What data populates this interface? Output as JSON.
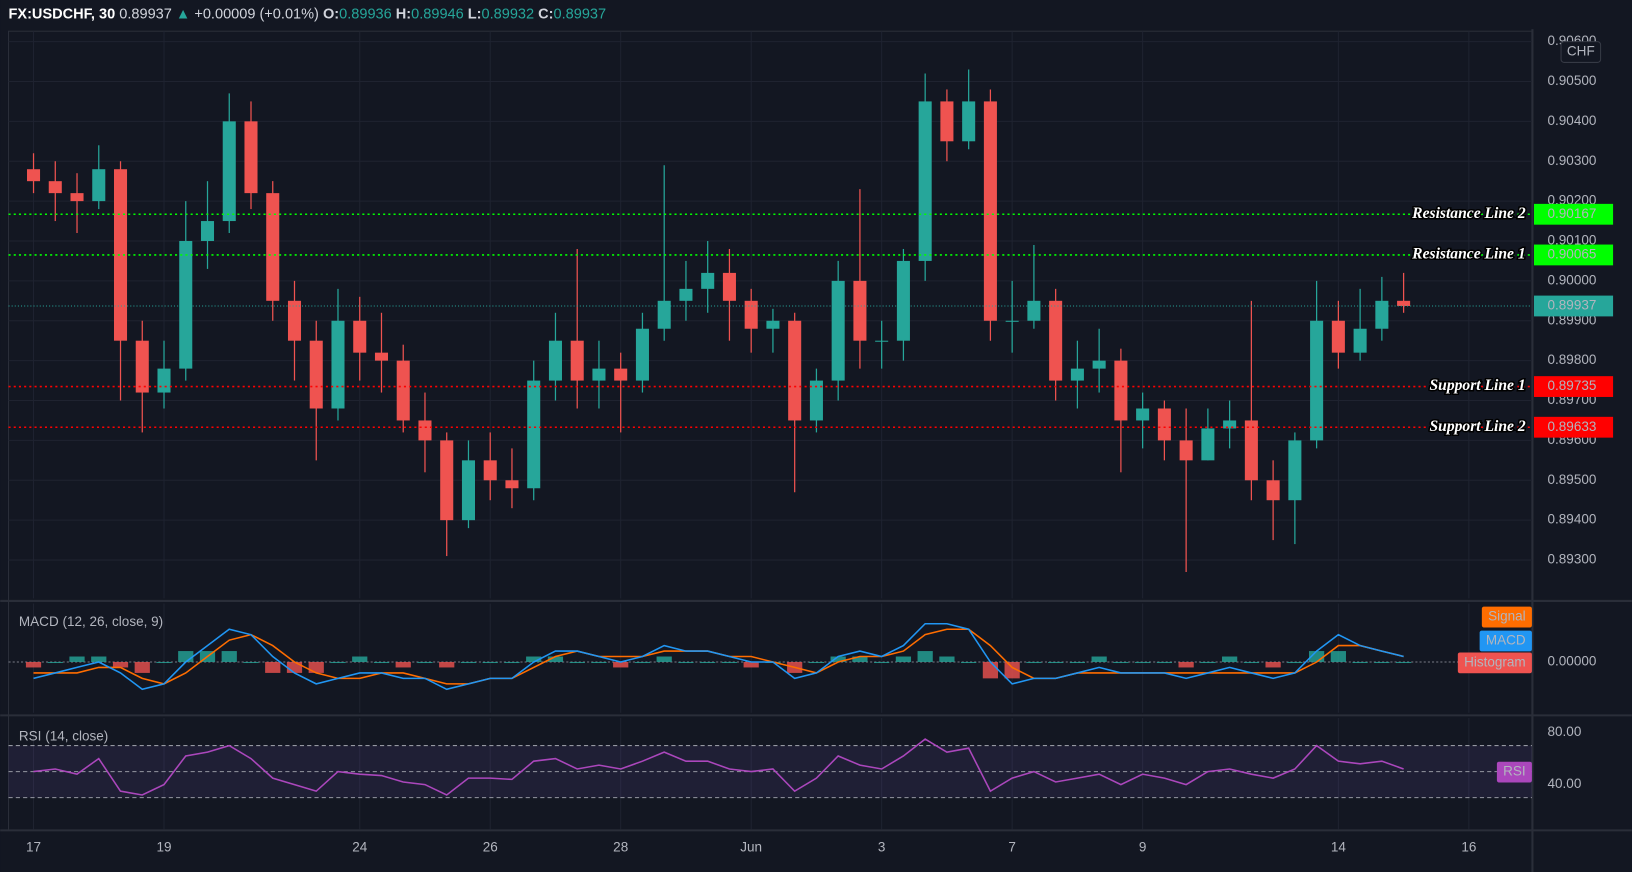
{
  "chart_data": [
    {
      "type": "candlestick",
      "title": "FX:USDCHF, 30",
      "last_price": 0.89937,
      "change": "+0.00009 (+0.01%)",
      "ohlc_legend": [
        {
          "label": "O:",
          "value": 0.89936
        },
        {
          "label": "H:",
          "value": 0.89946
        },
        {
          "label": "L:",
          "value": 0.89932
        },
        {
          "label": "C:",
          "value": 0.89937
        }
      ],
      "currency": "CHF",
      "up_color": "#26a69a",
      "down_color": "#ef5350",
      "last_color": "#26a69a",
      "xlim": [
        -1.15,
        68.9
      ],
      "xticks": [
        {
          "value": 0,
          "label": "17"
        },
        {
          "value": 6,
          "label": "19"
        },
        {
          "value": 15,
          "label": "24"
        },
        {
          "value": 21,
          "label": "26"
        },
        {
          "value": 27,
          "label": "28"
        },
        {
          "value": 33,
          "label": "Jun"
        },
        {
          "value": 39,
          "label": "3"
        },
        {
          "value": 45,
          "label": "7"
        },
        {
          "value": 51,
          "label": "9"
        },
        {
          "value": 60,
          "label": "14"
        },
        {
          "value": 66,
          "label": "16"
        }
      ],
      "ylim": [
        0.89204,
        0.90626
      ],
      "yticks": [
        {
          "value": 0.893,
          "label": "0.89300"
        },
        {
          "value": 0.894,
          "label": "0.89400"
        },
        {
          "value": 0.895,
          "label": "0.89500"
        },
        {
          "value": 0.896,
          "label": "0.89600"
        },
        {
          "value": 0.897,
          "label": "0.89700"
        },
        {
          "value": 0.898,
          "label": "0.89800"
        },
        {
          "value": 0.899,
          "label": "0.89900"
        },
        {
          "value": 0.9,
          "label": "0.90000"
        },
        {
          "value": 0.901,
          "label": "0.90100"
        },
        {
          "value": 0.902,
          "label": "0.90200"
        },
        {
          "value": 0.903,
          "label": "0.90300"
        },
        {
          "value": 0.904,
          "label": "0.90400"
        },
        {
          "value": 0.905,
          "label": "0.90500"
        },
        {
          "value": 0.906,
          "label": "0.90600"
        }
      ],
      "grid": true,
      "levels": [
        {
          "name": "Resistance Line 2",
          "value": 0.90167,
          "color": "#00ff00",
          "text_color": "#000000"
        },
        {
          "name": "Resistance Line 1",
          "value": 0.90065,
          "color": "#00ff00",
          "text_color": "#000000"
        },
        {
          "name": "Support Line 1",
          "value": 0.89735,
          "color": "#ff0000",
          "text_color": "#ffffff"
        },
        {
          "name": "Support Line 2",
          "value": 0.89633,
          "color": "#ff0000",
          "text_color": "#ffffff"
        }
      ],
      "open": [
        0.9028,
        0.9025,
        0.9022,
        0.902,
        0.9028,
        0.8985,
        0.8972,
        0.8978,
        0.901,
        0.9015,
        0.904,
        0.9022,
        0.8995,
        0.8985,
        0.8968,
        0.899,
        0.8982,
        0.898,
        0.8965,
        0.896,
        0.894,
        0.8955,
        0.895,
        0.8948,
        0.8975,
        0.8985,
        0.8975,
        0.8978,
        0.8975,
        0.8988,
        0.8995,
        0.8998,
        0.9002,
        0.8995,
        0.8988,
        0.899,
        0.8965,
        0.8975,
        0.9,
        0.8985,
        0.8985,
        0.9005,
        0.9045,
        0.9035,
        0.9045,
        0.899,
        0.899,
        0.8995,
        0.8975,
        0.8978,
        0.898,
        0.8965,
        0.8968,
        0.896,
        0.8955,
        0.8963,
        0.8965,
        0.895,
        0.8945,
        0.896,
        0.899,
        0.8982,
        0.8988,
        0.8995
      ],
      "high": [
        0.9032,
        0.903,
        0.9027,
        0.9034,
        0.903,
        0.899,
        0.8985,
        0.902,
        0.9025,
        0.9047,
        0.9045,
        0.9025,
        0.9,
        0.899,
        0.8998,
        0.8996,
        0.8992,
        0.8984,
        0.8972,
        0.8962,
        0.896,
        0.8962,
        0.8958,
        0.898,
        0.8992,
        0.9008,
        0.8985,
        0.8982,
        0.8992,
        0.9029,
        0.9005,
        0.901,
        0.9008,
        0.8998,
        0.8993,
        0.8992,
        0.8978,
        0.9005,
        0.9023,
        0.899,
        0.9008,
        0.9052,
        0.9048,
        0.9053,
        0.9048,
        0.9,
        0.9009,
        0.8998,
        0.8985,
        0.8988,
        0.8983,
        0.8972,
        0.897,
        0.8968,
        0.8968,
        0.897,
        0.8995,
        0.8955,
        0.8962,
        0.9,
        0.8995,
        0.8998,
        0.9001,
        0.9002
      ],
      "low": [
        0.9022,
        0.9015,
        0.9012,
        0.9018,
        0.897,
        0.8962,
        0.8968,
        0.8975,
        0.9003,
        0.9012,
        0.9018,
        0.899,
        0.8975,
        0.8955,
        0.8965,
        0.8975,
        0.8972,
        0.8962,
        0.8952,
        0.8931,
        0.8938,
        0.8945,
        0.8943,
        0.8945,
        0.897,
        0.8968,
        0.8968,
        0.8962,
        0.8972,
        0.8985,
        0.899,
        0.8992,
        0.8985,
        0.8982,
        0.8982,
        0.8947,
        0.8962,
        0.897,
        0.8978,
        0.8978,
        0.898,
        0.9,
        0.903,
        0.9033,
        0.8985,
        0.8982,
        0.8988,
        0.897,
        0.8968,
        0.8972,
        0.8952,
        0.8958,
        0.8955,
        0.8927,
        0.8955,
        0.8958,
        0.8945,
        0.8935,
        0.8934,
        0.8958,
        0.8978,
        0.898,
        0.8985,
        0.8992
      ],
      "close": [
        0.9025,
        0.9022,
        0.902,
        0.9028,
        0.8985,
        0.8972,
        0.8978,
        0.901,
        0.9015,
        0.904,
        0.9022,
        0.8995,
        0.8985,
        0.8968,
        0.899,
        0.8982,
        0.898,
        0.8965,
        0.896,
        0.894,
        0.8955,
        0.895,
        0.8948,
        0.8975,
        0.8985,
        0.8975,
        0.8978,
        0.8975,
        0.8988,
        0.8995,
        0.8998,
        0.9002,
        0.8995,
        0.8988,
        0.899,
        0.8965,
        0.8975,
        0.9,
        0.8985,
        0.8985,
        0.9005,
        0.9045,
        0.9035,
        0.9045,
        0.899,
        0.899,
        0.8995,
        0.8975,
        0.8978,
        0.898,
        0.8965,
        0.8968,
        0.896,
        0.8955,
        0.8963,
        0.8965,
        0.895,
        0.8945,
        0.896,
        0.899,
        0.8982,
        0.8988,
        0.8995,
        0.89937
      ]
    },
    {
      "type": "macd",
      "title": "MACD (12, 26, close, 9)",
      "ylim": [
        -0.00093,
        0.00107
      ],
      "yticks": [
        {
          "value": 0,
          "label": "0.00000"
        }
      ],
      "series": [
        {
          "name": "Signal",
          "color": "#ff6d00",
          "values": [
            -0.0002,
            -0.0002,
            -0.0002,
            -0.0001,
            -0.0001,
            -0.0003,
            -0.0004,
            -0.0002,
            0.0001,
            0.0004,
            0.0005,
            0.0003,
            0,
            -0.0002,
            -0.0003,
            -0.0003,
            -0.0002,
            -0.0002,
            -0.0003,
            -0.0004,
            -0.0004,
            -0.0003,
            -0.0003,
            -0.0001,
            0.0001,
            0.0002,
            0.0001,
            0.0001,
            0.0001,
            0.0002,
            0.0002,
            0.0002,
            0.0001,
            0.0001,
            0,
            -0.0001,
            -0.0002,
            0,
            0.0001,
            0.0001,
            0.0002,
            0.0005,
            0.0006,
            0.0006,
            0.0003,
            -0.0001,
            -0.0003,
            -0.0003,
            -0.0002,
            -0.0002,
            -0.0002,
            -0.0002,
            -0.0002,
            -0.0002,
            -0.0002,
            -0.0002,
            -0.0002,
            -0.0002,
            -0.0002,
            0,
            0.0003,
            0.0003,
            0.0002,
            0.0001
          ]
        },
        {
          "name": "MACD",
          "color": "#2196f3",
          "values": [
            -0.0003,
            -0.0002,
            -0.0001,
            0,
            -0.0002,
            -0.0005,
            -0.0004,
            0,
            0.0003,
            0.0006,
            0.0005,
            0.0001,
            -0.0002,
            -0.0004,
            -0.0003,
            -0.0002,
            -0.0002,
            -0.0003,
            -0.0003,
            -0.0005,
            -0.0004,
            -0.0003,
            -0.0003,
            0,
            0.0002,
            0.0002,
            0.0001,
            0,
            0.0001,
            0.0003,
            0.0002,
            0.0002,
            0.0001,
            0,
            0,
            -0.0003,
            -0.0002,
            0.0001,
            0.0002,
            0.0001,
            0.0003,
            0.0007,
            0.0007,
            0.0006,
            0,
            -0.0004,
            -0.0003,
            -0.0003,
            -0.0002,
            -0.0001,
            -0.0002,
            -0.0002,
            -0.0002,
            -0.0003,
            -0.0002,
            -0.0001,
            -0.0002,
            -0.0003,
            -0.0002,
            0.0002,
            0.0005,
            0.0003,
            0.0002,
            0.0001
          ]
        },
        {
          "name": "Histogram",
          "color": "#ef5350",
          "up_color": "#26a69a",
          "values": [
            -0.0001,
            0,
            0.0001,
            0.0001,
            -0.0001,
            -0.0002,
            0,
            0.0002,
            0.0002,
            0.0002,
            0,
            -0.0002,
            -0.0002,
            -0.0002,
            0,
            0.0001,
            0,
            -0.0001,
            0,
            -0.0001,
            0,
            0,
            0,
            0.0001,
            0.0001,
            0,
            0,
            -0.0001,
            0,
            0.0001,
            0,
            0,
            0,
            -0.0001,
            0,
            -0.0002,
            0,
            0.0001,
            0.0001,
            0,
            0.0001,
            0.0002,
            0.0001,
            0,
            -0.0003,
            -0.0003,
            0,
            0,
            0,
            0.0001,
            0,
            0,
            0,
            -0.0001,
            0,
            0.0001,
            0,
            -0.0001,
            0,
            0.0002,
            0.0002,
            0,
            0,
            0
          ]
        }
      ]
    },
    {
      "type": "rsi",
      "title": "RSI (14, close)",
      "ylim": [
        5.6,
        91.2
      ],
      "yticks": [
        {
          "value": 80,
          "label": "80.00"
        },
        {
          "value": 40,
          "label": "40.00"
        }
      ],
      "band": [
        30,
        70
      ],
      "midline": 50,
      "band_color": "#7e57c2",
      "series": [
        {
          "name": "RSI",
          "color": "#ab47bc",
          "values": [
            50,
            52,
            48,
            60,
            35,
            32,
            40,
            62,
            65,
            70,
            60,
            45,
            40,
            35,
            50,
            48,
            47,
            42,
            40,
            32,
            45,
            45,
            44,
            58,
            60,
            52,
            55,
            52,
            58,
            65,
            58,
            58,
            52,
            50,
            52,
            35,
            45,
            62,
            55,
            52,
            62,
            75,
            65,
            68,
            35,
            45,
            50,
            42,
            45,
            48,
            40,
            48,
            45,
            40,
            50,
            52,
            48,
            45,
            52,
            70,
            58,
            56,
            58,
            52
          ]
        }
      ]
    }
  ]
}
